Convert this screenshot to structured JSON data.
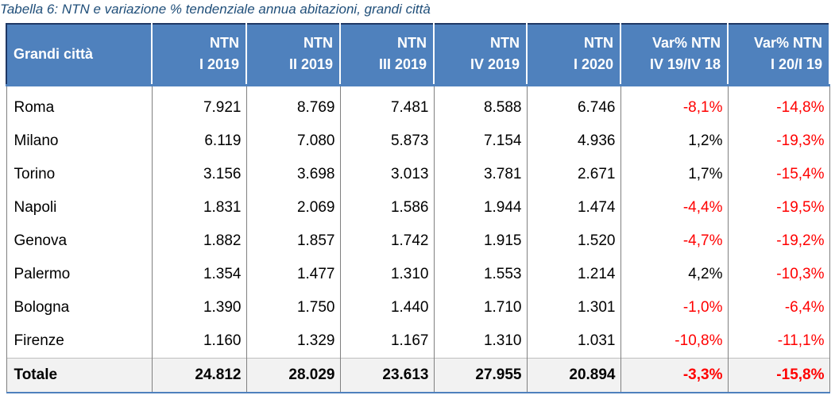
{
  "caption": "Tabella 6: NTN e variazione % tendenziale annua abitazioni, grandi città",
  "header": {
    "city": "Grandi città",
    "columns": [
      {
        "line1": "NTN",
        "line2": "I 2019"
      },
      {
        "line1": "NTN",
        "line2": "II 2019"
      },
      {
        "line1": "NTN",
        "line2": "III 2019"
      },
      {
        "line1": "NTN",
        "line2": "IV 2019"
      },
      {
        "line1": "NTN",
        "line2": "I 2020"
      },
      {
        "line1": "Var% NTN",
        "line2": "IV 19/IV 18"
      },
      {
        "line1": "Var% NTN",
        "line2": "I 20/I 19"
      }
    ]
  },
  "rows": [
    {
      "city": "Roma",
      "values": [
        "7.921",
        "8.769",
        "7.481",
        "8.588",
        "6.746",
        "-8,1%",
        "-14,8%"
      ]
    },
    {
      "city": "Milano",
      "values": [
        "6.119",
        "7.080",
        "5.873",
        "7.154",
        "4.936",
        "1,2%",
        "-19,3%"
      ]
    },
    {
      "city": "Torino",
      "values": [
        "3.156",
        "3.698",
        "3.013",
        "3.781",
        "2.671",
        "1,7%",
        "-15,4%"
      ]
    },
    {
      "city": "Napoli",
      "values": [
        "1.831",
        "2.069",
        "1.586",
        "1.944",
        "1.474",
        "-4,4%",
        "-19,5%"
      ]
    },
    {
      "city": "Genova",
      "values": [
        "1.882",
        "1.857",
        "1.742",
        "1.915",
        "1.520",
        "-4,7%",
        "-19,2%"
      ]
    },
    {
      "city": "Palermo",
      "values": [
        "1.354",
        "1.477",
        "1.310",
        "1.553",
        "1.214",
        "4,2%",
        "-10,3%"
      ]
    },
    {
      "city": "Bologna",
      "values": [
        "1.390",
        "1.750",
        "1.440",
        "1.710",
        "1.301",
        "-1,0%",
        "-6,4%"
      ]
    },
    {
      "city": "Firenze",
      "values": [
        "1.160",
        "1.329",
        "1.167",
        "1.310",
        "1.031",
        "-10,8%",
        "-11,1%"
      ]
    }
  ],
  "total": {
    "city": "Totale",
    "values": [
      "24.812",
      "28.029",
      "23.613",
      "27.955",
      "20.894",
      "-3,3%",
      "-15,8%"
    ]
  },
  "colors": {
    "header_bg": "#4f81bd",
    "header_text": "#ffffff",
    "negative": "#ff0000",
    "caption": "#1f4e79",
    "total_bg": "#f2f2f2"
  }
}
